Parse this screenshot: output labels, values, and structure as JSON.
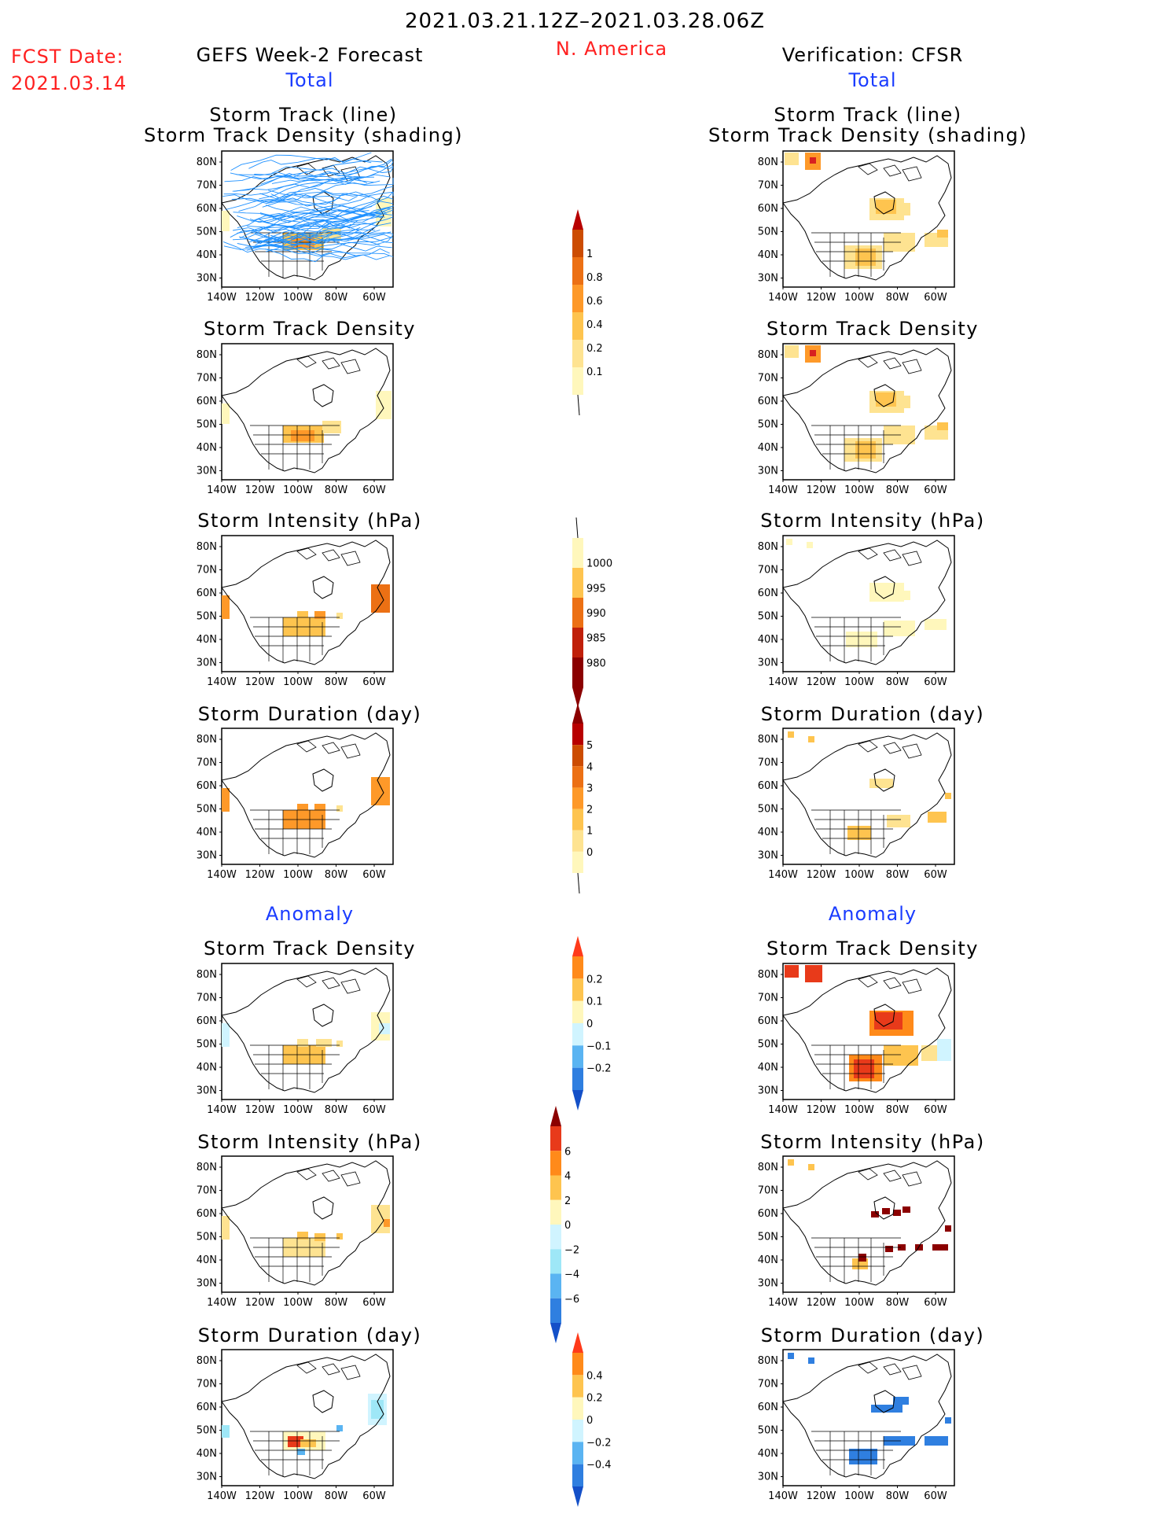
{
  "header": {
    "period": "2021.03.21.12Z–2021.03.28.06Z",
    "region": "N. America",
    "fcst_label": "FCST Date:",
    "fcst_date": "2021.03.14",
    "left_title": "GEFS Week-2 Forecast",
    "right_title": "Verification: CFSR",
    "total_label_left": "Total",
    "total_label_right": "Total",
    "anomaly_label_left": "Anomaly",
    "anomaly_label_right": "Anomaly"
  },
  "panel_titles": {
    "track_line": "Storm Track (line)",
    "track_shading": "Storm Track Density (shading)",
    "density": "Storm Track Density",
    "intensity": "Storm Intensity (hPa)",
    "duration": "Storm Duration (day)"
  },
  "map_axes": {
    "lat_ticks": [
      "80N",
      "70N",
      "60N",
      "50N",
      "40N",
      "30N"
    ],
    "lon_ticks": [
      "140W",
      "120W",
      "100W",
      "80W",
      "60W"
    ]
  },
  "colors": {
    "ocean_bg": "#ffffff",
    "track_line": "#1e90ff",
    "warm": [
      "#fff7bc",
      "#fee391",
      "#fec44f",
      "#fe9929",
      "#ec7014",
      "#cc4c02",
      "#8b0000"
    ],
    "cool": [
      "#d0f4ff",
      "#9ee7f7",
      "#5ab4f2",
      "#2f7fe0",
      "#1450c8"
    ]
  },
  "colorbars": {
    "density_total": {
      "labels": [
        "1",
        "0.8",
        "0.6",
        "0.4",
        "0.2",
        "0.1"
      ]
    },
    "intensity_total": {
      "labels": [
        "1000",
        "995",
        "990",
        "985",
        "980"
      ]
    },
    "duration_total": {
      "labels": [
        "5",
        "4",
        "3",
        "2",
        "1",
        "0"
      ]
    },
    "density_anom": {
      "labels": [
        "0.2",
        "0.1",
        "0",
        "−0.1",
        "−0.2"
      ]
    },
    "intensity_anom": {
      "labels": [
        "6",
        "4",
        "2",
        "0",
        "−2",
        "−4",
        "−6"
      ]
    },
    "duration_anom": {
      "labels": [
        "0.4",
        "0.2",
        "0",
        "−0.2",
        "−0.4"
      ]
    }
  },
  "chart_data": [
    {
      "type": "heatmap",
      "panel": "forecast_total_track",
      "title": "Storm Track (line) / Storm Track Density (shading)",
      "xlabel": "",
      "ylabel": "",
      "x_range": [
        "140W",
        "50W"
      ],
      "y_range": [
        "25N",
        "85N"
      ]
    },
    {
      "type": "heatmap",
      "panel": "verification_total_track",
      "title": "Storm Track (line) / Storm Track Density (shading)",
      "x_range": [
        "140W",
        "50W"
      ],
      "y_range": [
        "25N",
        "85N"
      ]
    },
    {
      "type": "heatmap",
      "panel": "forecast_total_density",
      "title": "Storm Track Density"
    },
    {
      "type": "heatmap",
      "panel": "verification_total_density",
      "title": "Storm Track Density"
    },
    {
      "type": "heatmap",
      "panel": "forecast_total_intensity",
      "title": "Storm Intensity (hPa)"
    },
    {
      "type": "heatmap",
      "panel": "verification_total_intensity",
      "title": "Storm Intensity (hPa)"
    },
    {
      "type": "heatmap",
      "panel": "forecast_total_duration",
      "title": "Storm Duration (day)"
    },
    {
      "type": "heatmap",
      "panel": "verification_total_duration",
      "title": "Storm Duration (day)"
    },
    {
      "type": "heatmap",
      "panel": "forecast_anom_density",
      "title": "Storm Track Density"
    },
    {
      "type": "heatmap",
      "panel": "verification_anom_density",
      "title": "Storm Track Density"
    },
    {
      "type": "heatmap",
      "panel": "forecast_anom_intensity",
      "title": "Storm Intensity (hPa)"
    },
    {
      "type": "heatmap",
      "panel": "verification_anom_intensity",
      "title": "Storm Intensity (hPa)"
    },
    {
      "type": "heatmap",
      "panel": "forecast_anom_duration",
      "title": "Storm Duration (day)"
    },
    {
      "type": "heatmap",
      "panel": "verification_anom_duration",
      "title": "Storm Duration (day)"
    }
  ]
}
